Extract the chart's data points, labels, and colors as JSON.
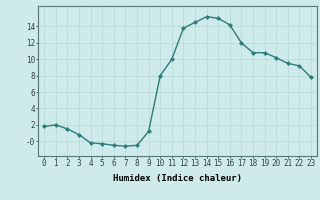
{
  "x": [
    0,
    1,
    2,
    3,
    4,
    5,
    6,
    7,
    8,
    9,
    10,
    11,
    12,
    13,
    14,
    15,
    16,
    17,
    18,
    19,
    20,
    21,
    22,
    23
  ],
  "y": [
    1.8,
    2.0,
    1.5,
    0.8,
    -0.2,
    -0.3,
    -0.5,
    -0.6,
    -0.5,
    1.2,
    8.0,
    10.0,
    13.8,
    14.5,
    15.2,
    15.0,
    14.2,
    12.0,
    10.8,
    10.8,
    10.2,
    9.5,
    9.2,
    7.8
  ],
  "line_color": "#2d7d78",
  "marker": "D",
  "marker_size": 2.0,
  "bg_color": "#ceeaea",
  "grid_color": "#b8d8d8",
  "xlabel": "Humidex (Indice chaleur)",
  "xlim": [
    -0.5,
    23.5
  ],
  "ylim": [
    -1.8,
    16.5
  ],
  "yticks": [
    0,
    2,
    4,
    6,
    8,
    10,
    12,
    14
  ],
  "ytick_labels": [
    "-0",
    "2",
    "4",
    "6",
    "8",
    "10",
    "12",
    "14"
  ],
  "xticks": [
    0,
    1,
    2,
    3,
    4,
    5,
    6,
    7,
    8,
    9,
    10,
    11,
    12,
    13,
    14,
    15,
    16,
    17,
    18,
    19,
    20,
    21,
    22,
    23
  ],
  "axis_fontsize": 6.5,
  "tick_fontsize": 5.5
}
